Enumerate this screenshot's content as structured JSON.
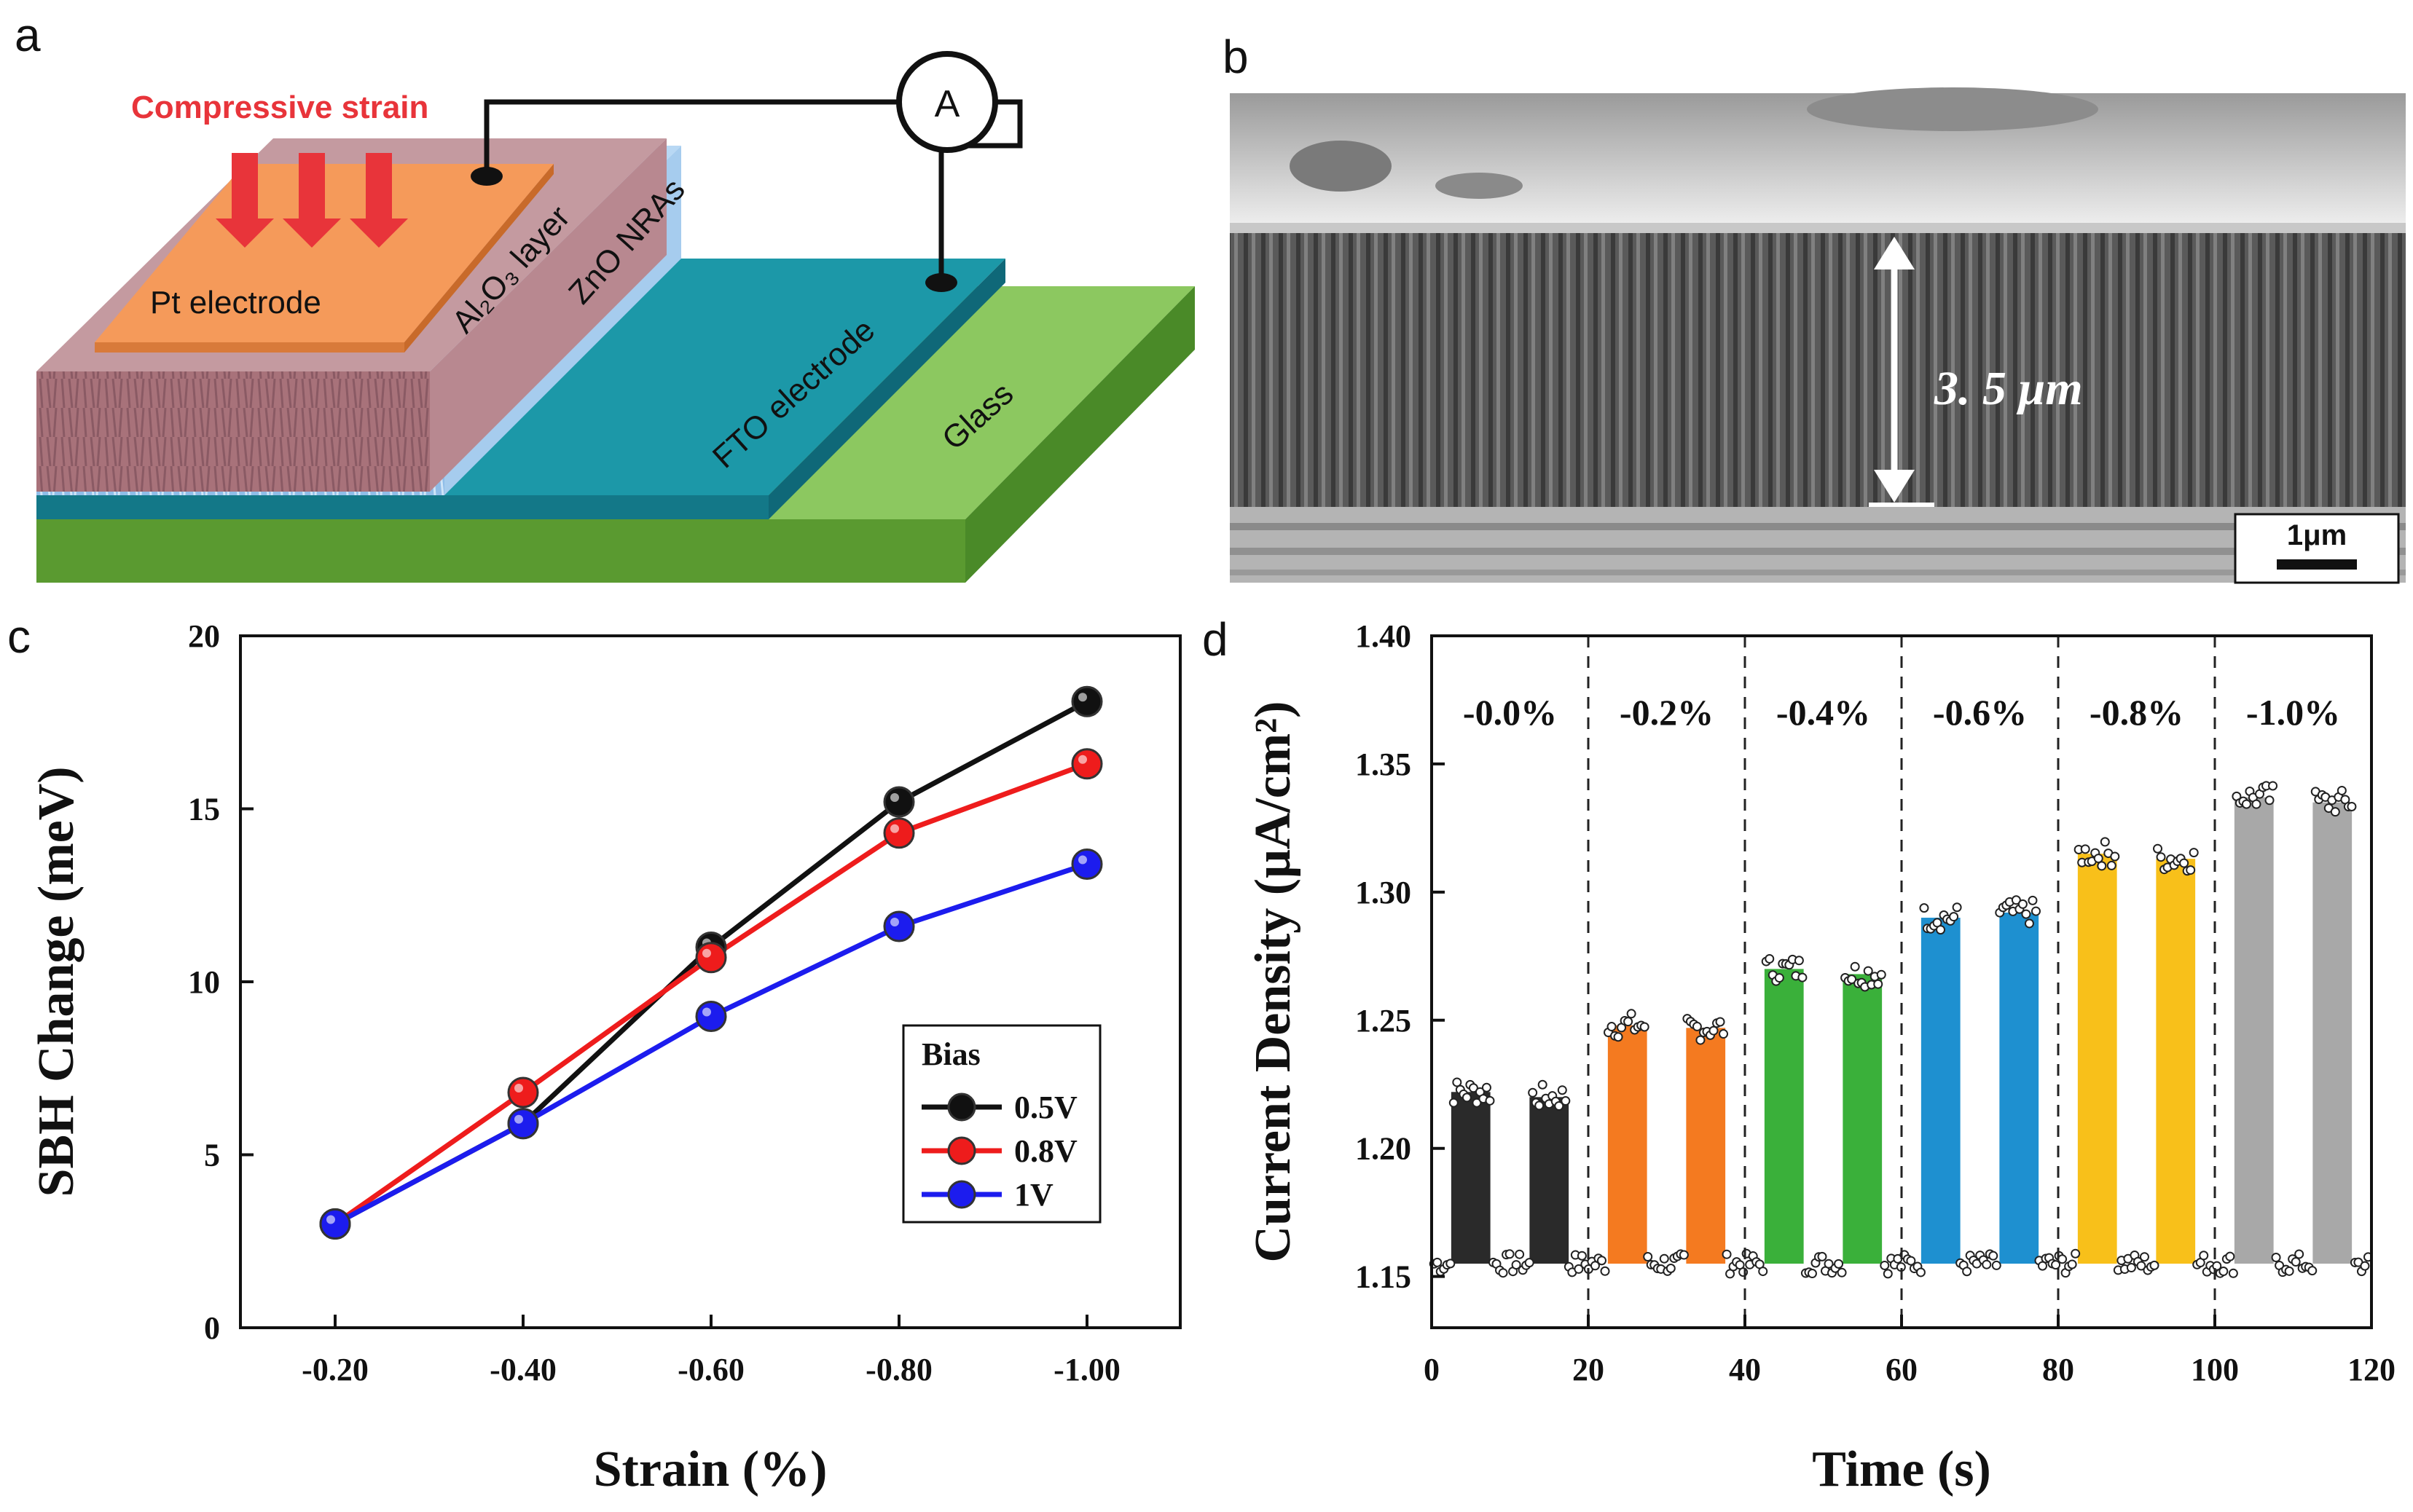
{
  "panels": {
    "a": {
      "label": "a",
      "strain_label": "Compressive strain",
      "ammeter_label": "A",
      "layers": {
        "pt": "Pt electrode",
        "al2o3": "Al₂O₃ layer",
        "zno": "ZnO NRAs",
        "fto": "FTO electrode",
        "glass": "Glass"
      }
    },
    "b": {
      "label": "b",
      "thickness_label": "3. 5 μm",
      "scale_bar_label": "1μm"
    },
    "c": {
      "label": "c"
    },
    "d": {
      "label": "d"
    }
  },
  "colors": {
    "black_series": "#111111",
    "red_series": "#ee1c1c",
    "blue_series": "#1c1cee",
    "strain_arrow": "#e8343a",
    "pt": "#f59a5a",
    "al2o3": "#a8727a",
    "zno": "#8fbde8",
    "fto": "#1c98a8",
    "glass": "#78b848"
  },
  "chart_data": [
    {
      "id": "c",
      "type": "line",
      "categories": [
        "-0.20",
        "-0.40",
        "-0.60",
        "-0.80",
        "-1.00"
      ],
      "xlabel": "Strain (%)",
      "ylabel": "SBH Change (meV)",
      "ylim": [
        0,
        20
      ],
      "yticks": [
        0,
        5,
        10,
        15,
        20
      ],
      "legend": {
        "title": "Bias",
        "position": "center-right"
      },
      "series": [
        {
          "name": "0.5V",
          "color": "#111111",
          "values": [
            3.0,
            5.9,
            11.0,
            15.2,
            18.1
          ]
        },
        {
          "name": "0.8V",
          "color": "#ee1c1c",
          "values": [
            3.0,
            6.8,
            10.7,
            14.3,
            16.3
          ]
        },
        {
          "name": "1V",
          "color": "#1c1cee",
          "values": [
            3.0,
            5.9,
            9.0,
            11.6,
            13.4
          ]
        }
      ]
    },
    {
      "id": "d",
      "type": "bar",
      "xlabel": "Time (s)",
      "ylabel": "Current Density (μA/cm²)",
      "xlim": [
        0,
        120
      ],
      "ylim": [
        1.13,
        1.4
      ],
      "xticks": [
        0,
        20,
        40,
        60,
        80,
        100,
        120
      ],
      "yticks": [
        "1.15",
        "1.20",
        "1.25",
        "1.30",
        "1.35",
        "1.40"
      ],
      "baseline": 1.155,
      "segment_boundaries": [
        20,
        40,
        60,
        80,
        100
      ],
      "segments": [
        {
          "label": "-0.0%",
          "color": "#2a2a2a",
          "pulses": [
            {
              "start": 2.5,
              "end": 7.5,
              "value": 1.222
            },
            {
              "start": 12.5,
              "end": 17.5,
              "value": 1.22
            }
          ]
        },
        {
          "label": "-0.2%",
          "color": "#f47a20",
          "pulses": [
            {
              "start": 22.5,
              "end": 27.5,
              "value": 1.248
            },
            {
              "start": 32.5,
              "end": 37.5,
              "value": 1.247
            }
          ]
        },
        {
          "label": "-0.4%",
          "color": "#3ab03a",
          "pulses": [
            {
              "start": 42.5,
              "end": 47.5,
              "value": 1.27
            },
            {
              "start": 52.5,
              "end": 57.5,
              "value": 1.268
            }
          ]
        },
        {
          "label": "-0.6%",
          "color": "#1e90d0",
          "pulses": [
            {
              "start": 62.5,
              "end": 67.5,
              "value": 1.29
            },
            {
              "start": 72.5,
              "end": 77.5,
              "value": 1.292
            }
          ]
        },
        {
          "label": "-0.8%",
          "color": "#f8c01a",
          "pulses": [
            {
              "start": 82.5,
              "end": 87.5,
              "value": 1.315
            },
            {
              "start": 92.5,
              "end": 97.5,
              "value": 1.313
            }
          ]
        },
        {
          "label": "-1.0%",
          "color": "#a8a8a8",
          "pulses": [
            {
              "start": 102.5,
              "end": 107.5,
              "value": 1.337
            },
            {
              "start": 112.5,
              "end": 117.5,
              "value": 1.335
            }
          ]
        }
      ]
    }
  ]
}
